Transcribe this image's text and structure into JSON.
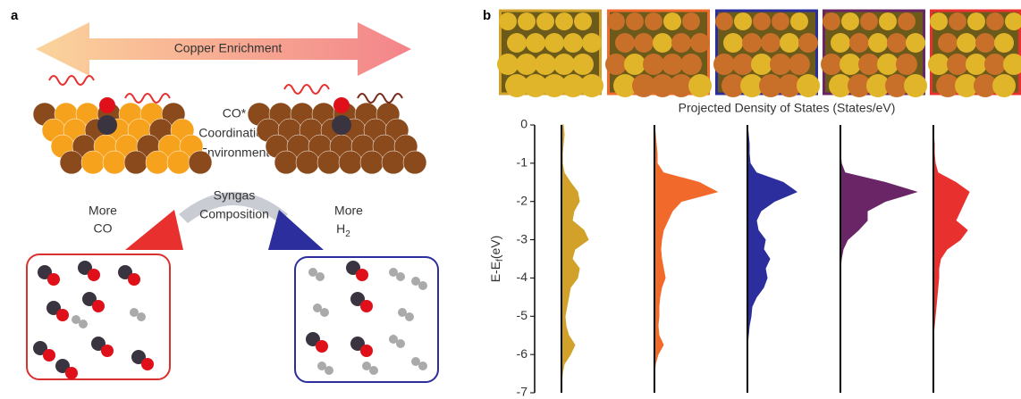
{
  "panel_a": {
    "label": "a",
    "arrow_label": "Copper Enrichment",
    "center_lines": [
      "CO*",
      "Coordination",
      "Environment"
    ],
    "arc_lines": [
      "Syngas",
      "Composition"
    ],
    "left_lines": [
      "More",
      "CO"
    ],
    "right_label": "More",
    "right_species": {
      "main": "H",
      "sub": "2"
    }
  },
  "chart_data": {
    "type": "density",
    "panel_label": "b",
    "title": "Projected Density of States (States/eV)",
    "ylabel": {
      "main": "E-E",
      "sub": "f",
      "unit": "(eV)"
    },
    "ylim": [
      -7,
      0
    ],
    "yticks": [
      0,
      -1,
      -2,
      -3,
      -4,
      -5,
      -6,
      -7
    ],
    "xlim": [
      0,
      1
    ],
    "y": [
      0,
      -0.25,
      -0.5,
      -0.75,
      -1,
      -1.25,
      -1.5,
      -1.75,
      -2,
      -2.25,
      -2.5,
      -2.75,
      -3,
      -3.25,
      -3.5,
      -3.75,
      -4,
      -4.25,
      -4.5,
      -4.75,
      -5,
      -5.25,
      -5.5,
      -5.75,
      -6,
      -6.25,
      -6.5,
      -6.75,
      -7
    ],
    "series": [
      {
        "color": "#d1a12a",
        "values": [
          0.02,
          0.03,
          0.02,
          0.01,
          0.01,
          0.03,
          0.1,
          0.18,
          0.2,
          0.14,
          0.12,
          0.25,
          0.3,
          0.15,
          0.12,
          0.2,
          0.18,
          0.1,
          0.08,
          0.06,
          0.04,
          0.05,
          0.08,
          0.15,
          0.1,
          0.03,
          0.01,
          0,
          0
        ]
      },
      {
        "color": "#f26a2b",
        "values": [
          0,
          0.01,
          0.02,
          0.03,
          0.03,
          0.1,
          0.5,
          0.7,
          0.3,
          0.2,
          0.15,
          0.1,
          0.08,
          0.07,
          0.08,
          0.1,
          0.12,
          0.08,
          0.06,
          0.05,
          0.05,
          0.04,
          0.05,
          0.1,
          0.04,
          0.01,
          0,
          0,
          0
        ]
      },
      {
        "color": "#2b2e9c",
        "values": [
          0,
          0.01,
          0.02,
          0.02,
          0.03,
          0.1,
          0.4,
          0.55,
          0.3,
          0.15,
          0.1,
          0.12,
          0.2,
          0.18,
          0.25,
          0.2,
          0.22,
          0.18,
          0.1,
          0.05,
          0.04,
          0.02,
          0.01,
          0,
          0,
          0,
          0,
          0,
          0
        ]
      },
      {
        "color": "#6a2566",
        "values": [
          0,
          0,
          0,
          0,
          0.01,
          0.05,
          0.5,
          0.85,
          0.5,
          0.3,
          0.3,
          0.2,
          0.08,
          0.03,
          0.01,
          0,
          0,
          0,
          0,
          0,
          0,
          0,
          0,
          0,
          0,
          0,
          0,
          0,
          0
        ]
      },
      {
        "color": "#e8312f",
        "values": [
          0,
          0,
          0.01,
          0.01,
          0.02,
          0.05,
          0.25,
          0.4,
          0.35,
          0.3,
          0.25,
          0.38,
          0.3,
          0.15,
          0.08,
          0.06,
          0.06,
          0.05,
          0.04,
          0.03,
          0.02,
          0.01,
          0,
          0,
          0,
          0,
          0,
          0,
          0
        ]
      }
    ]
  }
}
